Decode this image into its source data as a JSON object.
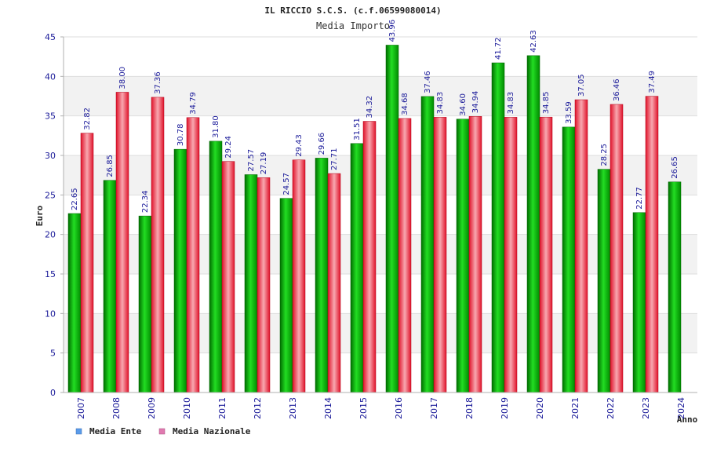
{
  "chart_data": {
    "type": "bar",
    "title": "IL RICCIO S.C.S. (c.f.06599080014)",
    "subtitle": "Media Importo",
    "xlabel": "Anno",
    "ylabel": "Euro",
    "ylim": [
      0,
      45
    ],
    "yticks": [
      0,
      5,
      10,
      15,
      20,
      25,
      30,
      35,
      40,
      45
    ],
    "categories": [
      "2007",
      "2008",
      "2009",
      "2010",
      "2011",
      "2012",
      "2013",
      "2014",
      "2015",
      "2016",
      "2017",
      "2018",
      "2019",
      "2020",
      "2021",
      "2022",
      "2023",
      "2024"
    ],
    "series": [
      {
        "name": "Media Ente",
        "color": "#00b400",
        "values": [
          22.65,
          26.85,
          22.34,
          30.78,
          31.8,
          27.57,
          24.57,
          29.66,
          31.51,
          43.96,
          37.46,
          34.6,
          41.72,
          42.63,
          33.59,
          28.25,
          22.77,
          26.65
        ],
        "labels": [
          "22.65",
          "26.85",
          "22.34",
          "30.78",
          "31.80",
          "27.57",
          "24.57",
          "29.66",
          "31.51",
          "43.96",
          "37.46",
          "34.60",
          "41.72",
          "42.63",
          "33.59",
          "28.25",
          "22.77",
          "26.65"
        ]
      },
      {
        "name": "Media Nazionale",
        "color": "#e8283c",
        "values": [
          32.82,
          38.0,
          37.36,
          34.79,
          29.24,
          27.19,
          29.43,
          27.71,
          34.32,
          34.68,
          34.83,
          34.94,
          34.83,
          34.85,
          37.05,
          36.46,
          37.49,
          null
        ],
        "labels": [
          "32.82",
          "38.00",
          "37.36",
          "34.79",
          "29.24",
          "27.19",
          "29.43",
          "27.71",
          "34.32",
          "34.68",
          "34.83",
          "34.94",
          "34.83",
          "34.85",
          "37.05",
          "36.46",
          "37.49",
          null
        ]
      }
    ],
    "legend": {
      "placement": "bottom-left",
      "entries": [
        {
          "label": "Media Ente",
          "swatch_color": "#5a9bea"
        },
        {
          "label": "Media Nazionale",
          "swatch_color": "#e07ab0"
        }
      ]
    },
    "grid": true
  }
}
